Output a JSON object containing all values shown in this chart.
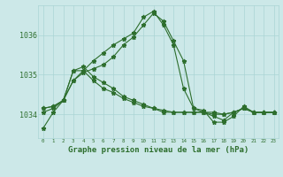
{
  "title": "Graphe pression niveau de la mer (hPa)",
  "bg_color": "#cce8e8",
  "grid_color": "#aad4d4",
  "line_color": "#2d6e2d",
  "x_labels": [
    "0",
    "1",
    "2",
    "3",
    "4",
    "5",
    "6",
    "7",
    "8",
    "9",
    "10",
    "11",
    "12",
    "13",
    "14",
    "15",
    "16",
    "17",
    "18",
    "19",
    "20",
    "21",
    "22",
    "23"
  ],
  "ylim": [
    1033.4,
    1036.75
  ],
  "yticks": [
    1034,
    1035,
    1036
  ],
  "series": [
    [
      1033.65,
      1034.05,
      1034.35,
      1034.85,
      1035.05,
      1035.15,
      1035.25,
      1035.45,
      1035.75,
      1035.95,
      1036.25,
      1036.55,
      1036.35,
      1035.85,
      1035.35,
      1034.15,
      1034.05,
      1033.95,
      1033.85,
      1034.05,
      1034.15,
      1034.05,
      1034.05,
      1034.05
    ],
    [
      1034.05,
      1034.15,
      1034.35,
      1035.1,
      1035.1,
      1035.35,
      1035.55,
      1035.75,
      1035.9,
      1036.05,
      1036.45,
      1036.6,
      1036.25,
      1035.75,
      1034.65,
      1034.15,
      1034.1,
      1033.8,
      1033.8,
      1033.95,
      1034.2,
      1034.05,
      1034.05,
      1034.05
    ],
    [
      1034.15,
      1034.2,
      1034.35,
      1035.1,
      1035.2,
      1034.95,
      1034.8,
      1034.65,
      1034.45,
      1034.35,
      1034.25,
      1034.15,
      1034.05,
      1034.05,
      1034.05,
      1034.05,
      1034.05,
      1034.05,
      1034.0,
      1034.05,
      1034.15,
      1034.05,
      1034.05,
      1034.05
    ],
    [
      1034.15,
      1034.2,
      1034.35,
      1034.85,
      1035.1,
      1034.85,
      1034.65,
      1034.55,
      1034.4,
      1034.3,
      1034.2,
      1034.15,
      1034.1,
      1034.05,
      1034.05,
      1034.05,
      1034.05,
      1034.0,
      1034.0,
      1034.05,
      1034.15,
      1034.05,
      1034.05,
      1034.05
    ]
  ]
}
